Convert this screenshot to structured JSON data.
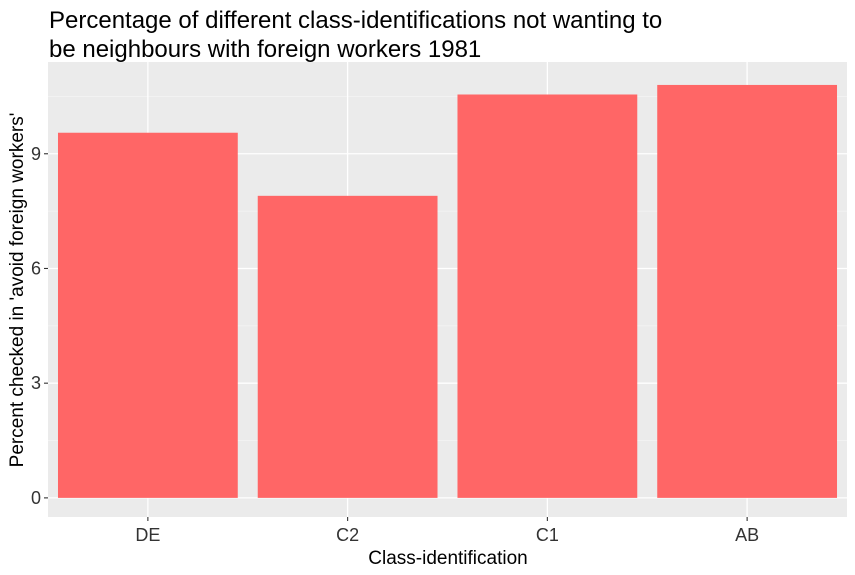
{
  "chart_data": {
    "type": "bar",
    "title_lines": [
      "Percentage of different class-identifications not wanting to",
      "be neighbours with foreign workers 1981"
    ],
    "xlabel": "Class-identification",
    "ylabel": "Percent checked in 'avoid foreign workers'",
    "categories": [
      "DE",
      "C2",
      "C1",
      "AB"
    ],
    "values": [
      9.55,
      7.9,
      10.55,
      10.8
    ],
    "ylim": [
      -0.5,
      11.4
    ],
    "yticks": [
      0,
      3,
      6,
      9
    ],
    "ytick_labels": [
      "0",
      "3",
      "6",
      "9"
    ],
    "grid": true,
    "legend": "none",
    "colors": {
      "bar": "#ff6666",
      "panel": "#ebebeb",
      "grid_major": "#ffffff",
      "grid_minor": "#f4f4f4"
    }
  }
}
